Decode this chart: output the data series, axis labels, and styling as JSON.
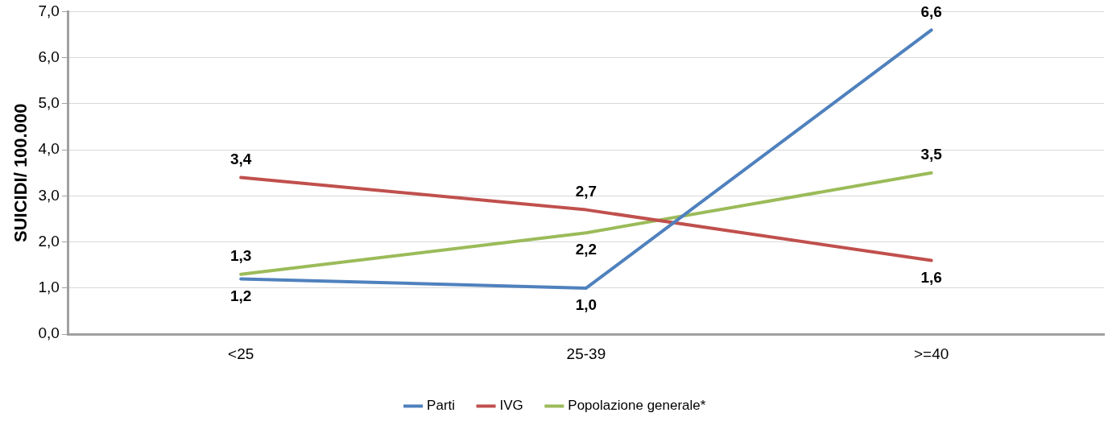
{
  "chart_data": {
    "type": "line",
    "ylabel": "SUICIDI/ 100.000",
    "categories": [
      "<25",
      "25-39",
      ">=40"
    ],
    "series": [
      {
        "name": "Parti",
        "color": "#4f81bd",
        "values": [
          1.2,
          1.0,
          6.6
        ],
        "value_labels": [
          "1,2",
          "1,0",
          "6,6"
        ]
      },
      {
        "name": "IVG",
        "color": "#c0504d",
        "values": [
          3.4,
          2.7,
          1.6
        ],
        "value_labels": [
          "3,4",
          "2,7",
          "1,6"
        ]
      },
      {
        "name": "Popolazione generale*",
        "color": "#9bbb59",
        "values": [
          1.3,
          2.2,
          3.5
        ],
        "value_labels": [
          "1,3",
          "2,2",
          "3,5"
        ]
      }
    ],
    "ylim": [
      0,
      7
    ],
    "yticks": [
      {
        "value": 0,
        "label": "0,0"
      },
      {
        "value": 1,
        "label": "1,0"
      },
      {
        "value": 2,
        "label": "2,0"
      },
      {
        "value": 3,
        "label": "3,0"
      },
      {
        "value": 4,
        "label": "4,0"
      },
      {
        "value": 5,
        "label": "5,0"
      },
      {
        "value": 6,
        "label": "6,0"
      },
      {
        "value": 7,
        "label": "7,0"
      }
    ],
    "grid": "y",
    "legend": "bottom",
    "marker": "none",
    "line_style": "solid"
  }
}
